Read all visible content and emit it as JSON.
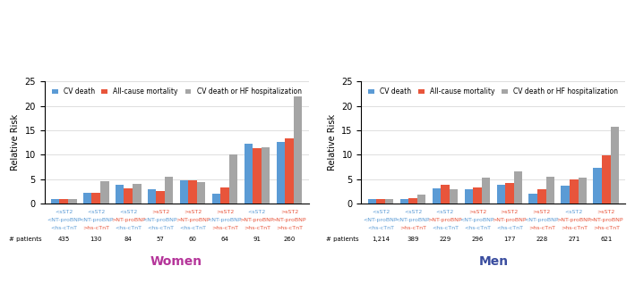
{
  "chart_data": [
    {
      "type": "bar",
      "title": "Women",
      "y_label": "Relative Risk",
      "categories": [
        "<sST2\n<NT-proBNP\n<hs-cTnT",
        "<sST2\n<NT-proBNP\n>hs-cTnT",
        "<sST2\n>NT-proBNP\n<hs-cTnT",
        ">sST2\n<NT-proBNP\n<hs-cTnT",
        ">sST2\n>NT-proBNP\n<hs-cTnT",
        ">sST2\n<NT-proBNP\n>hs-cTnT",
        "<sST2\n>NT-proBNP\n>hs-cTnT",
        ">sST2\n>NT-proBNP\n>hs-cTnT"
      ],
      "series": [
        {
          "name": "CV death",
          "color": "#5B9BD5",
          "values": [
            1,
            2.2,
            3.9,
            2.9,
            4.8,
            2.1,
            12.2,
            12.7
          ]
        },
        {
          "name": "All-cause mortality",
          "color": "#E8553B",
          "values": [
            1,
            2.2,
            3.1,
            2.6,
            4.8,
            3.3,
            11.4,
            13.4
          ]
        },
        {
          "name": "CV death or HF hospitalization",
          "color": "#A5A5A5",
          "values": [
            1,
            4.6,
            4.1,
            5.5,
            4.5,
            10.1,
            11.6,
            22.0
          ]
        }
      ],
      "patients_title": "# patients",
      "patients": [
        435,
        130,
        84,
        57,
        60,
        64,
        91,
        260
      ],
      "ylim": [
        0,
        25
      ],
      "yticks": [
        0,
        5,
        10,
        15,
        20,
        25
      ],
      "grid": true,
      "legend": "upper center"
    },
    {
      "type": "bar",
      "title": "Men",
      "y_label": "Relative Risk",
      "categories": [
        "<sST2\n<NT-proBNP\n<hs-cTnT",
        "<sST2\n<NT-proBNP\n>hs-cTnT",
        "<sST2\n>NT-proBNP\n<hs-cTnT",
        ">sST2\n<NT-proBNP\n<hs-cTnT",
        ">sST2\n>NT-proBNP\n<hs-cTnT",
        ">sST2\n<NT-proBNP\n>hs-cTnT",
        "<sST2\n>NT-proBNP\n>hs-cTnT",
        ">sST2\n>NT-proBNP\n>hs-cTnT"
      ],
      "series": [
        {
          "name": "CV death",
          "color": "#5B9BD5",
          "values": [
            1,
            1.0,
            3.2,
            2.9,
            3.9,
            2.0,
            3.6,
            7.4
          ]
        },
        {
          "name": "All-cause mortality",
          "color": "#E8553B",
          "values": [
            1,
            1.2,
            3.8,
            3.3,
            4.3,
            2.9,
            5.0,
            9.9
          ]
        },
        {
          "name": "CV death or HF hospitalization",
          "color": "#A5A5A5",
          "values": [
            1,
            1.8,
            2.9,
            5.3,
            6.6,
            5.5,
            5.3,
            15.7
          ]
        }
      ],
      "patients_title": "# patients",
      "patients": [
        1214,
        389,
        229,
        296,
        177,
        228,
        271,
        621
      ],
      "patient_labels": [
        "1,214",
        "389",
        "229",
        "296",
        "177",
        "228",
        "271",
        "621"
      ],
      "ylim": [
        0,
        25
      ],
      "yticks": [
        0,
        5,
        10,
        15,
        20,
        25
      ],
      "grid": true,
      "legend": "upper center"
    }
  ]
}
